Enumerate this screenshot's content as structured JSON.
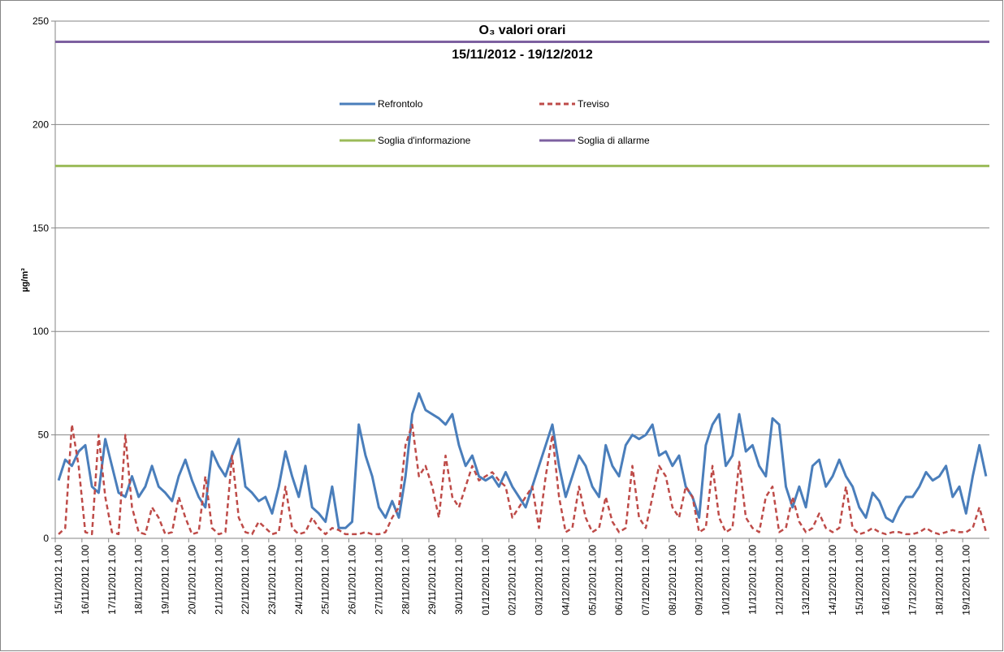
{
  "chart_data": {
    "type": "line",
    "title": "O₃ valori orari",
    "subtitle": "15/11/2012 - 19/12/2012",
    "y_label": "µg/m³",
    "ylim": [
      0,
      250
    ],
    "yticks": [
      0,
      50,
      100,
      150,
      200,
      250
    ],
    "grid": true,
    "categories": [
      "15/11/2012 1.00",
      null,
      null,
      null,
      "16/11/2012 1.00",
      null,
      null,
      null,
      "17/11/2012 1.00",
      null,
      null,
      null,
      "18/11/2012 1.00",
      null,
      null,
      null,
      "19/11/2012 1.00",
      null,
      null,
      null,
      "20/11/2012 1.00",
      null,
      null,
      null,
      "21/11/2012 1.00",
      null,
      null,
      null,
      "22/11/2012 1.00",
      null,
      null,
      null,
      "23/11/2012 1.00",
      null,
      null,
      null,
      "24/11/2012 1.00",
      null,
      null,
      null,
      "25/11/2012 1.00",
      null,
      null,
      null,
      "26/11/2012 1.00",
      null,
      null,
      null,
      "27/11/2012 1.00",
      null,
      null,
      null,
      "28/11/2012 1.00",
      null,
      null,
      null,
      "29/11/2012 1.00",
      null,
      null,
      null,
      "30/11/2012 1.00",
      null,
      null,
      null,
      "01/12/2012 1.00",
      null,
      null,
      null,
      "02/12/2012 1.00",
      null,
      null,
      null,
      "03/12/2012 1.00",
      null,
      null,
      null,
      "04/12/2012 1.00",
      null,
      null,
      null,
      "05/12/2012 1.00",
      null,
      null,
      null,
      "06/12/2012 1.00",
      null,
      null,
      null,
      "07/12/2012 1.00",
      null,
      null,
      null,
      "08/12/2012 1.00",
      null,
      null,
      null,
      "09/12/2012 1.00",
      null,
      null,
      null,
      "10/12/2012 1.00",
      null,
      null,
      null,
      "11/12/2012 1.00",
      null,
      null,
      null,
      "12/12/2012 1.00",
      null,
      null,
      null,
      "13/12/2012 1.00",
      null,
      null,
      null,
      "14/12/2012 1.00",
      null,
      null,
      null,
      "15/12/2012 1.00",
      null,
      null,
      null,
      "16/12/2012 1.00",
      null,
      null,
      null,
      "17/12/2012 1.00",
      null,
      null,
      null,
      "18/12/2012 1.00",
      null,
      null,
      null,
      "19/12/2012 1.00",
      null,
      null,
      null
    ],
    "series": [
      {
        "name": "Refrontolo",
        "color": "#4a7ebb",
        "dash": false,
        "values": [
          28,
          38,
          35,
          42,
          45,
          25,
          22,
          48,
          35,
          22,
          20,
          30,
          20,
          25,
          35,
          25,
          22,
          18,
          30,
          38,
          28,
          20,
          15,
          42,
          35,
          30,
          40,
          48,
          25,
          22,
          18,
          20,
          12,
          25,
          42,
          30,
          20,
          35,
          15,
          12,
          8,
          25,
          5,
          5,
          8,
          55,
          40,
          30,
          15,
          10,
          18,
          10,
          30,
          60,
          70,
          62,
          60,
          58,
          55,
          60,
          45,
          35,
          40,
          30,
          28,
          30,
          25,
          32,
          25,
          20,
          15,
          25,
          35,
          45,
          55,
          35,
          20,
          30,
          40,
          35,
          25,
          20,
          45,
          35,
          30,
          45,
          50,
          48,
          50,
          55,
          40,
          42,
          35,
          40,
          25,
          20,
          10,
          45,
          55,
          60,
          35,
          40,
          60,
          42,
          45,
          35,
          30,
          58,
          55,
          25,
          15,
          25,
          15,
          35,
          38,
          25,
          30,
          38,
          30,
          25,
          15,
          10,
          22,
          18,
          10,
          8,
          15,
          20,
          20,
          25,
          32,
          28,
          30,
          35,
          20,
          25,
          12,
          30,
          45,
          30
        ]
      },
      {
        "name": "Treviso",
        "color": "#be4b48",
        "dash": true,
        "values": [
          2,
          5,
          55,
          35,
          3,
          2,
          50,
          20,
          3,
          2,
          50,
          15,
          3,
          2,
          15,
          10,
          2,
          3,
          20,
          10,
          2,
          3,
          30,
          5,
          2,
          3,
          40,
          10,
          3,
          2,
          8,
          5,
          2,
          3,
          25,
          5,
          2,
          3,
          10,
          5,
          2,
          5,
          4,
          2,
          2,
          2,
          3,
          2,
          2,
          3,
          10,
          15,
          45,
          55,
          30,
          35,
          25,
          10,
          40,
          20,
          15,
          25,
          35,
          28,
          30,
          32,
          28,
          25,
          10,
          15,
          20,
          25,
          5,
          30,
          50,
          20,
          3,
          5,
          25,
          10,
          3,
          5,
          20,
          8,
          3,
          5,
          35,
          10,
          5,
          20,
          35,
          30,
          15,
          10,
          25,
          20,
          3,
          5,
          35,
          10,
          3,
          5,
          37,
          10,
          5,
          3,
          20,
          25,
          3,
          5,
          20,
          8,
          3,
          5,
          12,
          5,
          3,
          5,
          25,
          5,
          2,
          3,
          5,
          3,
          2,
          3,
          3,
          2,
          2,
          3,
          5,
          3,
          2,
          3,
          4,
          3,
          3,
          5,
          15,
          3
        ]
      }
    ],
    "reference_lines": [
      {
        "name": "Soglia d'informazione",
        "color": "#9bbb59",
        "value": 180
      },
      {
        "name": "Soglia di allarme",
        "color": "#7d60a0",
        "value": 240
      }
    ]
  }
}
